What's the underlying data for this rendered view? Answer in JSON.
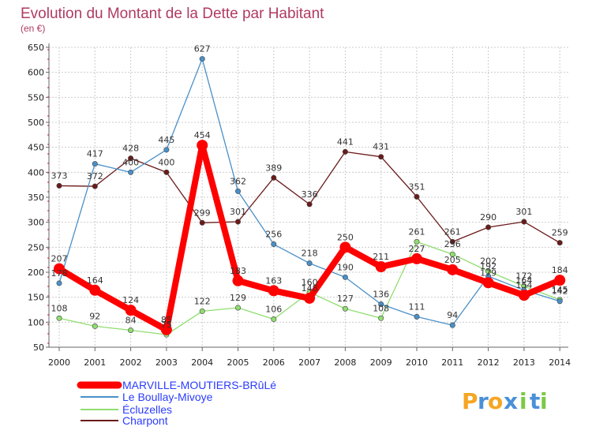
{
  "chart_data": {
    "type": "line",
    "title": "Evolution du Montant de la Dette par Habitant",
    "subtitle": "(en €)",
    "x": [
      "2000",
      "2001",
      "2002",
      "2003",
      "2004",
      "2005",
      "2006",
      "2007",
      "2008",
      "2009",
      "2010",
      "2011",
      "2012",
      "2013",
      "2014"
    ],
    "ylim": [
      50,
      650
    ],
    "yticks": [
      50,
      100,
      150,
      200,
      250,
      300,
      350,
      400,
      450,
      500,
      550,
      600,
      650
    ],
    "grid": true,
    "legend_position": "bottom-left",
    "series": [
      {
        "name": "MARVILLE-MOUTIERS-BRûLé",
        "color": "#ff0000",
        "values": [
          207,
          164,
          124,
          85,
          454,
          183,
          163,
          148,
          250,
          211,
          227,
          205,
          179,
          154,
          184
        ],
        "labels": [
          "207",
          "164",
          "124",
          "85",
          "454",
          "183",
          "163",
          "148",
          "250",
          "211",
          "227",
          "205",
          "179",
          "154",
          "184"
        ]
      },
      {
        "name": "Le Boullay-Mivoye",
        "color": "#4a90c8",
        "values": [
          178,
          417,
          400,
          445,
          627,
          362,
          256,
          218,
          190,
          136,
          111,
          94,
          192,
          164,
          142
        ],
        "labels": [
          "178",
          "417",
          "400",
          "445",
          "627",
          "362",
          "256",
          "218",
          "190",
          "136",
          "111",
          "94",
          "192",
          "164",
          "142"
        ]
      },
      {
        "name": "Écluzelles",
        "color": "#90dd70",
        "values": [
          108,
          92,
          84,
          75,
          122,
          129,
          106,
          160,
          127,
          108,
          261,
          236,
          202,
          172,
          145
        ],
        "labels": [
          "108",
          "92",
          "84",
          "75",
          "122",
          "129",
          "106",
          "160",
          "127",
          "108",
          "261",
          "236",
          "202",
          "172",
          "145"
        ]
      },
      {
        "name": "Charpont",
        "color": "#6b1a1a",
        "values": [
          373,
          372,
          428,
          400,
          299,
          301,
          389,
          336,
          441,
          431,
          351,
          261,
          290,
          301,
          259
        ],
        "labels": [
          "373",
          "372",
          "428",
          "400",
          "299",
          "301",
          "389",
          "336",
          "441",
          "431",
          "351",
          "261",
          "290",
          "301",
          "259"
        ]
      }
    ]
  },
  "logo": {
    "letters": [
      "P",
      "r",
      "o",
      "x",
      "i",
      "t",
      "i"
    ],
    "colors": [
      "#f5a623",
      "#4a90d9",
      "#f5a623",
      "#4a90d9",
      "#7ac943",
      "#4a90d9",
      "#7ac943"
    ]
  }
}
